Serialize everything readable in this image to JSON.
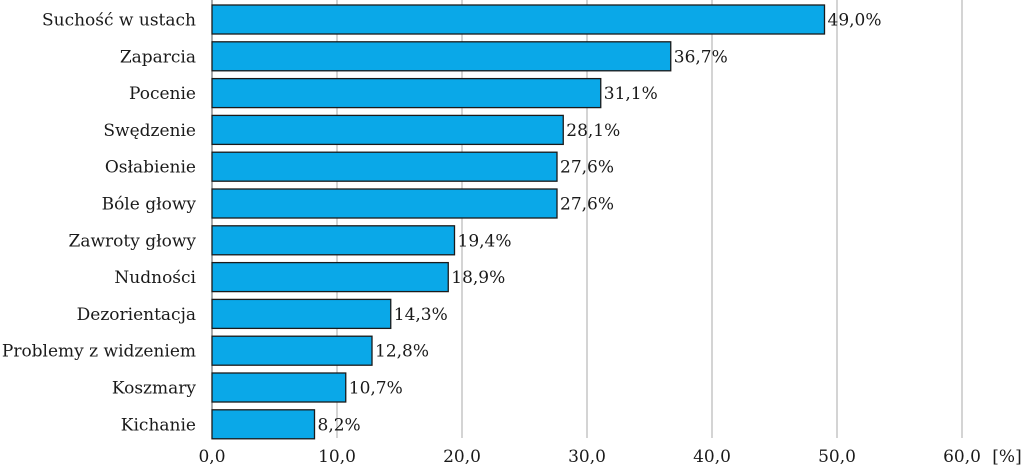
{
  "chart_data": {
    "type": "bar",
    "orientation": "horizontal",
    "title": "",
    "xlabel": "",
    "ylabel": "",
    "unit": "[%]",
    "xlim": [
      0,
      60
    ],
    "xticks": [
      "0,0",
      "10,0",
      "20,0",
      "30,0",
      "40,0",
      "50,0",
      "60,0"
    ],
    "categories": [
      "Suchość w ustach",
      "Zaparcia",
      "Pocenie",
      "Swędzenie",
      "Osłabienie",
      "Bóle głowy",
      "Zawroty głowy",
      "Nudności",
      "Dezorientacja",
      "Problemy z widzeniem",
      "Koszmary",
      "Kichanie"
    ],
    "values": [
      49.0,
      36.7,
      31.1,
      28.1,
      27.6,
      27.6,
      19.4,
      18.9,
      14.3,
      12.8,
      10.7,
      8.2
    ],
    "value_labels": [
      "49,0%",
      "36,7%",
      "31,1%",
      "28,1%",
      "27,6%",
      "27,6%",
      "19,4%",
      "18,9%",
      "14,3%",
      "12,8%",
      "10,7%",
      "8,2%"
    ],
    "grid": "vertical",
    "legend": "none",
    "bar_color": "#0aa8e8",
    "bar_edge_color": "#1a1a1a",
    "grid_color": "#a8a8a8"
  }
}
